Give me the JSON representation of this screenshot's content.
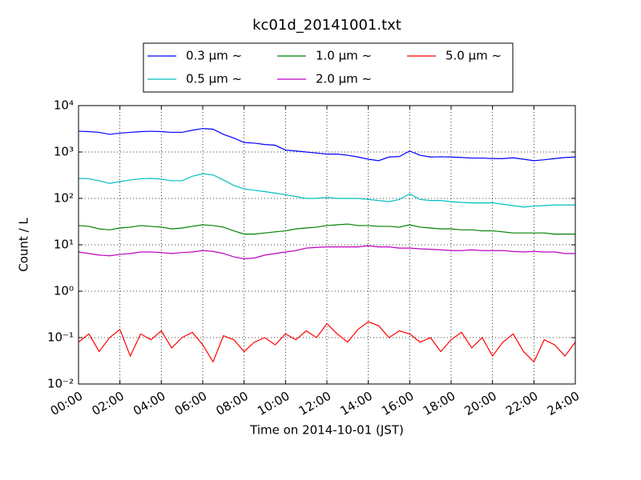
{
  "chart_data": {
    "type": "line",
    "title": "kc01d_20141001.txt",
    "xlabel": "Time on 2014-10-01 (JST)",
    "ylabel": "Count / L",
    "log_y": true,
    "grid": true,
    "legend": "upper center",
    "legend_columns": 3,
    "xlim": [
      0,
      24
    ],
    "ylim": [
      0.01,
      10000
    ],
    "xticks": [
      {
        "value": 0,
        "label": "00:00"
      },
      {
        "value": 2,
        "label": "02:00"
      },
      {
        "value": 4,
        "label": "04:00"
      },
      {
        "value": 6,
        "label": "06:00"
      },
      {
        "value": 8,
        "label": "08:00"
      },
      {
        "value": 10,
        "label": "10:00"
      },
      {
        "value": 12,
        "label": "12:00"
      },
      {
        "value": 14,
        "label": "14:00"
      },
      {
        "value": 16,
        "label": "16:00"
      },
      {
        "value": 18,
        "label": "18:00"
      },
      {
        "value": 20,
        "label": "20:00"
      },
      {
        "value": 22,
        "label": "22:00"
      },
      {
        "value": 24,
        "label": "24:00"
      }
    ],
    "yticks": [
      {
        "value": 0.01,
        "label": "10⁻²"
      },
      {
        "value": 0.1,
        "label": "10⁻¹"
      },
      {
        "value": 1,
        "label": "10⁰"
      },
      {
        "value": 10,
        "label": "10¹"
      },
      {
        "value": 100,
        "label": "10²"
      },
      {
        "value": 1000,
        "label": "10³"
      },
      {
        "value": 10000,
        "label": "10⁴"
      }
    ],
    "x": [
      0,
      0.5,
      1,
      1.5,
      2,
      2.5,
      3,
      3.5,
      4,
      4.5,
      5,
      5.5,
      6,
      6.5,
      7,
      7.5,
      8,
      8.5,
      9,
      9.5,
      10,
      10.5,
      11,
      11.5,
      12,
      12.5,
      13,
      13.5,
      14,
      14.5,
      15,
      15.5,
      16,
      16.5,
      17,
      17.5,
      18,
      18.5,
      19,
      19.5,
      20,
      20.5,
      21,
      21.5,
      22,
      22.5,
      23,
      23.5,
      24
    ],
    "series": [
      {
        "name": "0.3 μm ~",
        "color": "#0000ff",
        "values": [
          2800,
          2750,
          2650,
          2400,
          2550,
          2650,
          2750,
          2800,
          2750,
          2650,
          2650,
          2950,
          3200,
          3100,
          2400,
          2000,
          1600,
          1550,
          1450,
          1400,
          1100,
          1050,
          1000,
          950,
          900,
          900,
          850,
          780,
          700,
          650,
          780,
          800,
          1050,
          850,
          780,
          790,
          780,
          760,
          740,
          740,
          720,
          720,
          750,
          700,
          650,
          680,
          720,
          760,
          780
        ]
      },
      {
        "name": "0.5 μm ~",
        "color": "#00bfbf",
        "values": [
          270,
          265,
          240,
          210,
          230,
          250,
          265,
          270,
          260,
          240,
          240,
          300,
          340,
          320,
          250,
          190,
          160,
          150,
          140,
          130,
          120,
          110,
          100,
          100,
          105,
          100,
          100,
          100,
          95,
          90,
          85,
          95,
          125,
          95,
          90,
          90,
          85,
          82,
          80,
          80,
          80,
          75,
          70,
          65,
          68,
          70,
          72,
          72,
          72
        ]
      },
      {
        "name": "1.0 μm ~",
        "color": "#008000",
        "values": [
          26,
          25,
          22,
          21,
          23,
          24,
          26,
          25,
          24,
          22,
          23,
          25,
          27,
          26,
          24,
          20,
          17,
          17,
          18,
          19,
          20,
          22,
          23,
          24,
          26,
          27,
          28,
          26,
          26,
          25,
          25,
          24,
          27,
          24,
          23,
          22,
          22,
          21,
          21,
          20,
          20,
          19,
          18,
          18,
          18,
          18,
          17,
          17,
          17
        ]
      },
      {
        "name": "2.0 μm ~",
        "color": "#bf00bf",
        "values": [
          7,
          6.5,
          6,
          5.8,
          6.2,
          6.5,
          7,
          7,
          6.8,
          6.5,
          6.8,
          7,
          7.5,
          7.2,
          6.5,
          5.5,
          5,
          5.2,
          6,
          6.5,
          7,
          7.5,
          8.5,
          8.8,
          9,
          9,
          9,
          9,
          9.5,
          9,
          9,
          8.5,
          8.5,
          8.2,
          8,
          7.8,
          7.5,
          7.5,
          7.8,
          7.5,
          7.5,
          7.5,
          7.2,
          7,
          7.2,
          7,
          7,
          6.5,
          6.5
        ]
      },
      {
        "name": "5.0 μm ~",
        "color": "#ff0000",
        "values": [
          0.08,
          0.12,
          0.05,
          0.1,
          0.15,
          0.04,
          0.12,
          0.09,
          0.14,
          0.06,
          0.1,
          0.13,
          0.07,
          0.03,
          0.11,
          0.09,
          0.05,
          0.08,
          0.1,
          0.07,
          0.12,
          0.09,
          0.14,
          0.1,
          0.2,
          0.12,
          0.08,
          0.15,
          0.22,
          0.18,
          0.1,
          0.14,
          0.12,
          0.08,
          0.1,
          0.05,
          0.09,
          0.13,
          0.06,
          0.1,
          0.04,
          0.08,
          0.12,
          0.05,
          0.03,
          0.09,
          0.07,
          0.04,
          0.08
        ]
      }
    ]
  }
}
